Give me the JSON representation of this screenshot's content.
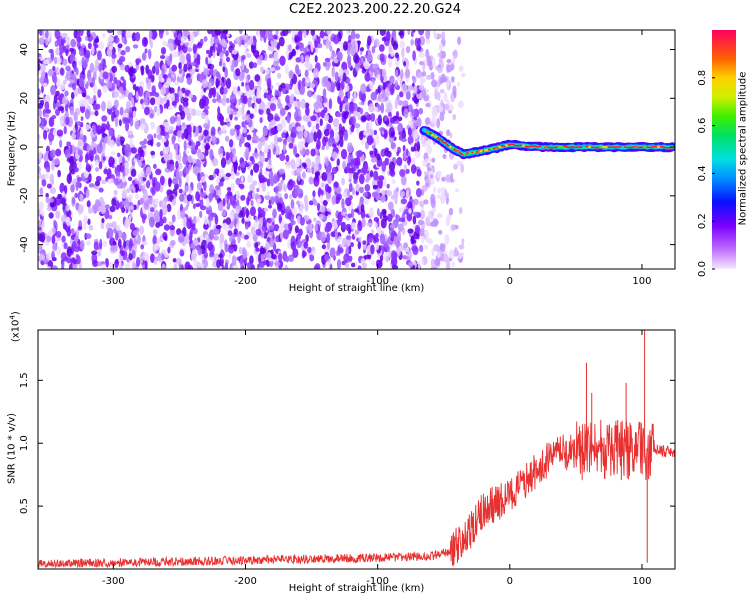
{
  "title": "C2E2.2023.200.22.20.G24",
  "chart_data": [
    {
      "type": "heatmap",
      "xlabel": "Height of straight line (km)",
      "ylabel": "Frequency (Hz)",
      "xlim": [
        -357,
        125
      ],
      "ylim": [
        -50,
        48
      ],
      "xticks": [
        -300,
        -200,
        -100,
        0,
        100
      ],
      "yticks": [
        -40,
        -20,
        0,
        20,
        40
      ],
      "noise_region_x": [
        -357,
        -35
      ],
      "signal_track": {
        "x": [
          -65,
          -55,
          -45,
          -35,
          -25,
          -15,
          0,
          25,
          50,
          75,
          100,
          125
        ],
        "y": [
          7,
          4,
          0,
          -3,
          -2,
          -1,
          1,
          0,
          0,
          0,
          0,
          0
        ]
      },
      "colorbar": {
        "label": "Normalized spectral amplitude",
        "range": [
          0.0,
          1.0
        ],
        "ticks": [
          0.0,
          0.2,
          0.4,
          0.6,
          0.8
        ],
        "tick_labels": [
          "0.0",
          "0.2",
          "0.4",
          "0.6",
          "0.8"
        ]
      }
    },
    {
      "type": "line",
      "xlabel": "Height of straight line (km)",
      "ylabel": "SNR (10 * v/v)",
      "scale_label": "(x10",
      "scale_exp": "4",
      "scale_close": ")",
      "xlim": [
        -357,
        125
      ],
      "ylim": [
        0,
        19000
      ],
      "xticks": [
        -300,
        -200,
        -100,
        0,
        100
      ],
      "yticks": [
        5000,
        10000,
        15000
      ],
      "ytick_labels": [
        "0.5",
        "1.0",
        "1.5"
      ],
      "color": "#e83030",
      "series": [
        {
          "x": [
            -357,
            -300,
            -250,
            -200,
            -150,
            -100,
            -60,
            -45,
            -30,
            -20,
            -10,
            0,
            10,
            20,
            30,
            40,
            50,
            60,
            70,
            80,
            90,
            100,
            105,
            110,
            125
          ],
          "y": [
            400,
            500,
            600,
            700,
            800,
            900,
            1000,
            1400,
            2800,
            4800,
            5200,
            5800,
            6800,
            7800,
            8800,
            9200,
            9400,
            9300,
            9500,
            9500,
            9400,
            9300,
            9500,
            9400,
            9300
          ]
        }
      ],
      "spikes": [
        {
          "x": 58,
          "y": 16400
        },
        {
          "x": 62,
          "y": 14000
        },
        {
          "x": 88,
          "y": 14800
        },
        {
          "x": 102,
          "y": 19000
        },
        {
          "x": 104,
          "y": 500
        }
      ]
    }
  ]
}
